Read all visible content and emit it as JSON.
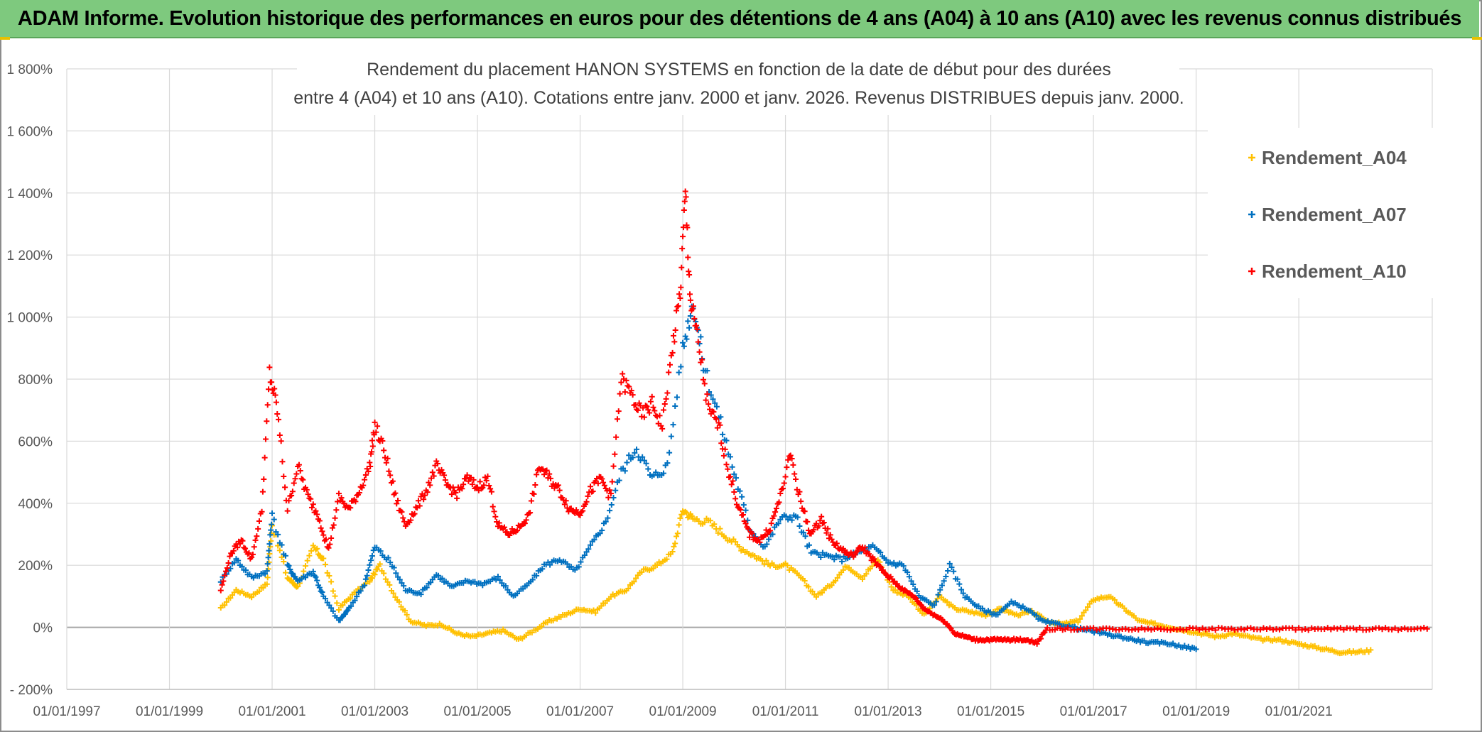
{
  "banner": {
    "title": "ADAM Informe. Evolution historique des performances en euros pour des détentions de 4 ans (A04) à 10 ans (A10) avec les revenus connus distribués"
  },
  "colors": {
    "banner_bg": "#7ec97e",
    "A04": "#ffc000",
    "A07": "#0070c0",
    "A10": "#ff0000",
    "grid": "#d9d9d9",
    "zero_line": "#a6a6a6"
  },
  "chart_data": {
    "type": "scatter",
    "title_line1": "Rendement du placement HANON SYSTEMS en fonction de la date de début pour des durées",
    "title_line2": "entre 4 (A04) et 10 ans (A10). Cotations entre janv. 2000 et janv. 2026. Revenus DISTRIBUES depuis janv. 2000.",
    "xlabel": "",
    "ylabel": "",
    "xlim": [
      1997.0,
      2023.6
    ],
    "ylim": [
      -200,
      1800
    ],
    "x_ticks": [
      "01/01/1997",
      "01/01/1999",
      "01/01/2001",
      "01/01/2003",
      "01/01/2005",
      "01/01/2007",
      "01/01/2009",
      "01/01/2011",
      "01/01/2013",
      "01/01/2015",
      "01/01/2017",
      "01/01/2019",
      "01/01/2021"
    ],
    "x_tick_values": [
      1997,
      1999,
      2001,
      2003,
      2005,
      2007,
      2009,
      2011,
      2013,
      2015,
      2017,
      2019,
      2021
    ],
    "y_ticks": [
      "- 200%",
      "0%",
      "200%",
      "400%",
      "600%",
      "800%",
      "1 000%",
      "1 200%",
      "1 400%",
      "1 600%",
      "1 800%"
    ],
    "y_tick_values": [
      -200,
      0,
      200,
      400,
      600,
      800,
      1000,
      1200,
      1400,
      1600,
      1800
    ],
    "legend_position": "top-right",
    "marker": "+",
    "series": [
      {
        "name": "Rendement_A04",
        "x": [
          2000.0,
          2000.3,
          2000.6,
          2000.9,
          2001.0,
          2001.3,
          2001.5,
          2001.8,
          2002.0,
          2002.3,
          2002.6,
          2002.9,
          2003.1,
          2003.4,
          2003.7,
          2004.0,
          2004.3,
          2004.6,
          2004.9,
          2005.2,
          2005.5,
          2005.8,
          2006.1,
          2006.4,
          2006.7,
          2007.0,
          2007.3,
          2007.6,
          2007.9,
          2008.2,
          2008.5,
          2008.8,
          2009.0,
          2009.2,
          2009.5,
          2009.8,
          2010.1,
          2010.4,
          2010.7,
          2011.0,
          2011.3,
          2011.6,
          2011.9,
          2012.2,
          2012.5,
          2012.8,
          2013.1,
          2013.4,
          2013.7,
          2014.0,
          2014.3,
          2014.6,
          2014.9,
          2015.2,
          2015.5,
          2015.8,
          2016.1,
          2016.4,
          2016.7,
          2017.0,
          2017.3,
          2017.6,
          2017.9,
          2018.2,
          2018.5,
          2018.8,
          2019.1,
          2019.4,
          2019.7,
          2020.0,
          2020.3,
          2020.6,
          2020.9,
          2021.2,
          2021.5,
          2021.8,
          2022.1,
          2022.4
        ],
        "values": [
          60,
          120,
          100,
          140,
          330,
          160,
          130,
          260,
          220,
          60,
          110,
          150,
          200,
          100,
          20,
          5,
          10,
          -20,
          -30,
          -20,
          -10,
          -40,
          -10,
          20,
          40,
          60,
          50,
          100,
          120,
          180,
          200,
          240,
          380,
          350,
          340,
          300,
          260,
          230,
          200,
          200,
          160,
          100,
          140,
          200,
          160,
          220,
          120,
          100,
          40,
          100,
          60,
          50,
          40,
          60,
          40,
          50,
          20,
          10,
          20,
          90,
          100,
          60,
          20,
          10,
          0,
          -10,
          -20,
          -30,
          -20,
          -30,
          -40,
          -40,
          -50,
          -60,
          -70,
          -80,
          -80,
          -75
        ]
      },
      {
        "name": "Rendement_A07",
        "x": [
          2000.0,
          2000.3,
          2000.6,
          2000.9,
          2001.0,
          2001.3,
          2001.5,
          2001.8,
          2002.0,
          2002.3,
          2002.5,
          2002.8,
          2003.0,
          2003.3,
          2003.6,
          2003.9,
          2004.2,
          2004.5,
          2004.8,
          2005.1,
          2005.4,
          2005.7,
          2006.0,
          2006.3,
          2006.6,
          2006.9,
          2007.2,
          2007.5,
          2007.8,
          2008.1,
          2008.4,
          2008.7,
          2009.0,
          2009.2,
          2009.4,
          2009.7,
          2010.0,
          2010.3,
          2010.6,
          2010.9,
          2011.2,
          2011.5,
          2011.8,
          2012.1,
          2012.4,
          2012.7,
          2013.0,
          2013.3,
          2013.6,
          2013.9,
          2014.2,
          2014.5,
          2014.8,
          2015.1,
          2015.4,
          2015.7,
          2016.0,
          2016.3,
          2016.6,
          2016.9,
          2017.2,
          2017.5,
          2017.8,
          2018.1,
          2018.4,
          2018.7,
          2019.0
        ],
        "values": [
          150,
          220,
          160,
          180,
          360,
          200,
          150,
          180,
          100,
          20,
          60,
          140,
          260,
          210,
          120,
          110,
          170,
          130,
          150,
          140,
          160,
          100,
          140,
          200,
          220,
          180,
          260,
          340,
          500,
          580,
          480,
          520,
          900,
          1050,
          850,
          680,
          500,
          320,
          260,
          350,
          360,
          240,
          230,
          220,
          240,
          260,
          210,
          200,
          100,
          70,
          200,
          100,
          60,
          40,
          80,
          60,
          20,
          10,
          0,
          -10,
          -20,
          -30,
          -40,
          -50,
          -50,
          -60,
          -70
        ]
      },
      {
        "name": "Rendement_A10",
        "x": [
          2000.0,
          2000.2,
          2000.4,
          2000.6,
          2000.8,
          2000.95,
          2001.1,
          2001.3,
          2001.5,
          2001.7,
          2001.9,
          2002.1,
          2002.3,
          2002.5,
          2002.7,
          2002.9,
          2003.0,
          2003.2,
          2003.4,
          2003.6,
          2003.8,
          2004.0,
          2004.2,
          2004.4,
          2004.6,
          2004.8,
          2005.0,
          2005.2,
          2005.4,
          2005.6,
          2005.8,
          2006.0,
          2006.2,
          2006.4,
          2006.6,
          2006.8,
          2007.0,
          2007.2,
          2007.4,
          2007.6,
          2007.8,
          2008.0,
          2008.2,
          2008.4,
          2008.6,
          2008.8,
          2008.95,
          2009.05,
          2009.15,
          2009.3,
          2009.5,
          2009.7,
          2009.9,
          2010.1,
          2010.3,
          2010.5,
          2010.7,
          2010.9,
          2011.1,
          2011.3,
          2011.5,
          2011.7,
          2011.9,
          2012.1,
          2012.3,
          2012.5,
          2012.7,
          2012.9,
          2013.1,
          2013.3,
          2013.5,
          2013.7,
          2013.9,
          2014.1,
          2014.3,
          2014.5,
          2014.7,
          2014.9,
          2015.1,
          2015.3,
          2015.5,
          2015.7,
          2015.9,
          2016.1,
          2016.5,
          2017.0,
          2017.5,
          2018.0,
          2018.5,
          2019.0,
          2019.5,
          2020.0,
          2020.5,
          2021.0,
          2021.5,
          2022.0,
          2022.5,
          2023.0,
          2023.5
        ],
        "values": [
          120,
          240,
          280,
          220,
          380,
          820,
          700,
          380,
          520,
          420,
          360,
          250,
          420,
          380,
          440,
          520,
          650,
          560,
          420,
          330,
          380,
          440,
          520,
          460,
          430,
          480,
          450,
          480,
          330,
          300,
          320,
          360,
          520,
          480,
          440,
          380,
          370,
          440,
          480,
          420,
          800,
          750,
          680,
          720,
          650,
          900,
          1080,
          1400,
          1050,
          920,
          700,
          650,
          500,
          380,
          300,
          280,
          320,
          420,
          560,
          400,
          300,
          350,
          280,
          250,
          230,
          260,
          220,
          180,
          150,
          120,
          100,
          60,
          40,
          20,
          -20,
          -30,
          -40,
          -40,
          -40,
          -40,
          -40,
          -40,
          -50,
          -5,
          -5,
          -5,
          -5,
          -5,
          -5,
          -5,
          -5,
          -5,
          -5,
          -5,
          -5,
          -5,
          -5,
          -5,
          -5
        ]
      }
    ]
  }
}
